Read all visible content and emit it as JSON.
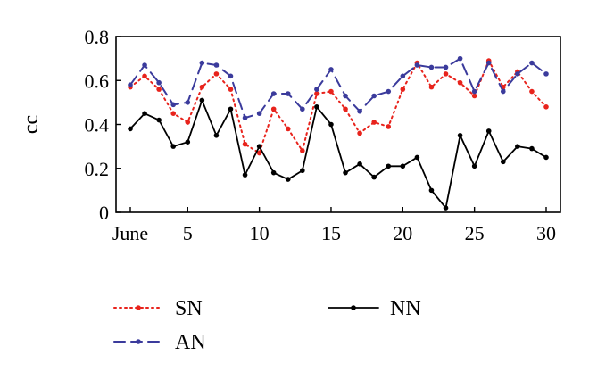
{
  "chart_data": {
    "type": "line",
    "title": "",
    "xlabel": "",
    "ylabel": "cc",
    "xlim": [
      1,
      30
    ],
    "ylim": [
      0,
      0.8
    ],
    "x_ticks": [
      {
        "value": 1,
        "label": "June"
      },
      {
        "value": 5,
        "label": "5"
      },
      {
        "value": 10,
        "label": "10"
      },
      {
        "value": 15,
        "label": "15"
      },
      {
        "value": 20,
        "label": "20"
      },
      {
        "value": 25,
        "label": "25"
      },
      {
        "value": 30,
        "label": "30"
      }
    ],
    "y_ticks": [
      {
        "value": 0,
        "label": "0"
      },
      {
        "value": 0.2,
        "label": "0.2"
      },
      {
        "value": 0.4,
        "label": "0.4"
      },
      {
        "value": 0.6,
        "label": "0.6"
      },
      {
        "value": 0.8,
        "label": "0.8"
      }
    ],
    "grid": false,
    "legend_position": "bottom",
    "x": [
      1,
      2,
      3,
      4,
      5,
      6,
      7,
      8,
      9,
      10,
      11,
      12,
      13,
      14,
      15,
      16,
      17,
      18,
      19,
      20,
      21,
      22,
      23,
      24,
      25,
      26,
      27,
      28,
      29,
      30
    ],
    "series": [
      {
        "name": "SN",
        "color": "#e8231c",
        "style": "dotted",
        "values": [
          0.57,
          0.62,
          0.56,
          0.45,
          0.41,
          0.57,
          0.63,
          0.56,
          0.31,
          0.27,
          0.47,
          0.38,
          0.28,
          0.54,
          0.55,
          0.47,
          0.36,
          0.41,
          0.39,
          0.56,
          0.68,
          0.57,
          0.63,
          0.59,
          0.53,
          0.69,
          0.57,
          0.64,
          0.55,
          0.48
        ]
      },
      {
        "name": "AN",
        "color": "#3b3b9c",
        "style": "dashed",
        "values": [
          0.58,
          0.67,
          0.59,
          0.49,
          0.5,
          0.68,
          0.67,
          0.62,
          0.43,
          0.45,
          0.54,
          0.54,
          0.47,
          0.56,
          0.65,
          0.53,
          0.46,
          0.53,
          0.55,
          0.62,
          0.67,
          0.66,
          0.66,
          0.7,
          0.55,
          0.68,
          0.55,
          0.63,
          0.68,
          0.63
        ]
      },
      {
        "name": "NN",
        "color": "#000000",
        "style": "solid",
        "values": [
          0.38,
          0.45,
          0.42,
          0.3,
          0.32,
          0.51,
          0.35,
          0.47,
          0.17,
          0.3,
          0.18,
          0.15,
          0.19,
          0.48,
          0.4,
          0.18,
          0.22,
          0.16,
          0.21,
          0.21,
          0.25,
          0.1,
          0.02,
          0.35,
          0.21,
          0.37,
          0.23,
          0.3,
          0.29,
          0.25
        ]
      }
    ]
  }
}
